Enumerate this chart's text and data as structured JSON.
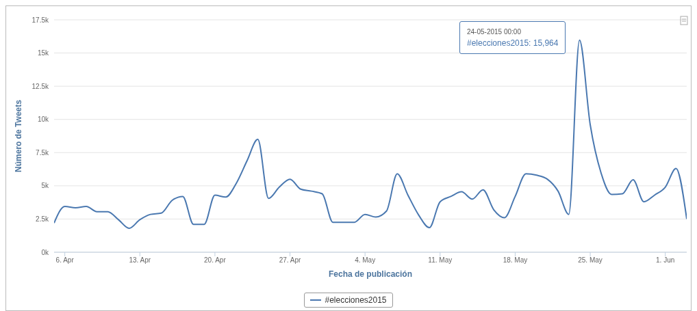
{
  "chart_data": {
    "type": "line",
    "xlabel": "Fecha de publicación",
    "ylabel": "Número de Tweets",
    "x": [
      "2015-04-05",
      "2015-04-06",
      "2015-04-07",
      "2015-04-08",
      "2015-04-09",
      "2015-04-10",
      "2015-04-11",
      "2015-04-12",
      "2015-04-13",
      "2015-04-14",
      "2015-04-15",
      "2015-04-16",
      "2015-04-17",
      "2015-04-18",
      "2015-04-19",
      "2015-04-20",
      "2015-04-21",
      "2015-04-22",
      "2015-04-23",
      "2015-04-24",
      "2015-04-25",
      "2015-04-26",
      "2015-04-27",
      "2015-04-28",
      "2015-04-29",
      "2015-04-30",
      "2015-05-01",
      "2015-05-02",
      "2015-05-03",
      "2015-05-04",
      "2015-05-05",
      "2015-05-06",
      "2015-05-07",
      "2015-05-08",
      "2015-05-09",
      "2015-05-10",
      "2015-05-11",
      "2015-05-12",
      "2015-05-13",
      "2015-05-14",
      "2015-05-15",
      "2015-05-16",
      "2015-05-17",
      "2015-05-18",
      "2015-05-19",
      "2015-05-20",
      "2015-05-21",
      "2015-05-22",
      "2015-05-23",
      "2015-05-24",
      "2015-05-25",
      "2015-05-26",
      "2015-05-27",
      "2015-05-28",
      "2015-05-29",
      "2015-05-30",
      "2015-05-31",
      "2015-06-01",
      "2015-06-02",
      "2015-06-03"
    ],
    "series": [
      {
        "name": "#elecciones2015",
        "color": "#4a78b0",
        "values": [
          2200,
          3450,
          3350,
          3450,
          3050,
          3050,
          2450,
          1800,
          2450,
          2850,
          2950,
          3900,
          4200,
          2100,
          2100,
          4300,
          4150,
          5200,
          6900,
          8500,
          4050,
          4900,
          5500,
          4750,
          4600,
          4400,
          2250,
          2250,
          2250,
          2850,
          2650,
          3100,
          5900,
          4300,
          2800,
          1850,
          3800,
          4200,
          4550,
          4000,
          4700,
          3200,
          2600,
          4200,
          5900,
          5800,
          5500,
          4600,
          2850,
          15964,
          9600,
          6000,
          4350,
          4400,
          5450,
          3800,
          4300,
          4900,
          6300,
          2500
        ]
      }
    ],
    "xlim": [
      "2015-04-05",
      "2015-06-03"
    ],
    "xticks": [
      {
        "value": "2015-04-06",
        "label": "6. Apr"
      },
      {
        "value": "2015-04-13",
        "label": "13. Apr"
      },
      {
        "value": "2015-04-20",
        "label": "20. Apr"
      },
      {
        "value": "2015-04-27",
        "label": "27. Apr"
      },
      {
        "value": "2015-05-04",
        "label": "4. May"
      },
      {
        "value": "2015-05-11",
        "label": "11. May"
      },
      {
        "value": "2015-05-18",
        "label": "18. May"
      },
      {
        "value": "2015-05-25",
        "label": "25. May"
      },
      {
        "value": "2015-06-01",
        "label": "1. Jun"
      }
    ],
    "ylim": [
      0,
      17500
    ],
    "yticks": [
      {
        "value": 0,
        "label": "0k"
      },
      {
        "value": 2500,
        "label": "2.5k"
      },
      {
        "value": 5000,
        "label": "5k"
      },
      {
        "value": 7500,
        "label": "7.5k"
      },
      {
        "value": 10000,
        "label": "10k"
      },
      {
        "value": 12500,
        "label": "12.5k"
      },
      {
        "value": 15000,
        "label": "15k"
      },
      {
        "value": 17500,
        "label": "17.5k"
      }
    ],
    "grid": "y",
    "legend": "bottom",
    "marker": "none",
    "line_style": "solid",
    "annotations": [
      "24-05-2015 00:00\n#elecciones2015: 15,964"
    ]
  }
}
